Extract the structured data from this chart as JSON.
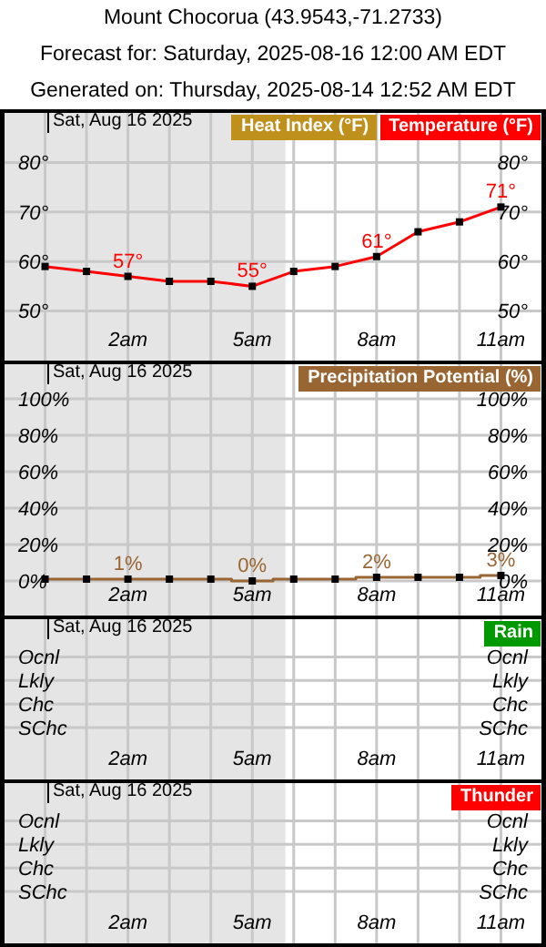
{
  "chart_data": [
    {
      "type": "line",
      "title": "Mount Chocorua (43.9543,-71.2733)",
      "subtitle": "Forecast for: Saturday, 2025-08-16 12:00 AM EDT\nGenerated on: Thursday, 2025-08-14 12:52 AM EDT",
      "annotations": [
        "Sat, Aug 16 2025"
      ],
      "x": [
        0,
        1,
        2,
        3,
        4,
        5,
        6,
        7,
        8,
        9,
        10,
        11
      ],
      "series": [
        {
          "name": "Heat Index (°F)",
          "color": "#c0901c",
          "values": [
            null,
            null,
            null,
            null,
            null,
            null,
            null,
            null,
            null,
            null,
            null,
            null
          ]
        },
        {
          "name": "Temperature (°F)",
          "color": "#ff0000",
          "values": [
            59,
            58,
            57,
            56,
            56,
            55,
            58,
            59,
            61,
            66,
            68,
            71
          ],
          "value_labels": [
            null,
            null,
            "57°",
            null,
            null,
            "55°",
            null,
            null,
            "61°",
            null,
            null,
            "71°"
          ]
        }
      ],
      "xlim": [
        -1,
        12
      ],
      "xticks": [
        {
          "value": 0,
          "label": null
        },
        {
          "value": 1,
          "label": null
        },
        {
          "value": 2,
          "label": "2am"
        },
        {
          "value": 3,
          "label": null
        },
        {
          "value": 4,
          "label": null
        },
        {
          "value": 5,
          "label": "5am"
        },
        {
          "value": 6,
          "label": null
        },
        {
          "value": 7,
          "label": null
        },
        {
          "value": 8,
          "label": "8am"
        },
        {
          "value": 9,
          "label": null
        },
        {
          "value": 10,
          "label": null
        },
        {
          "value": 11,
          "label": "11am"
        }
      ],
      "ylim": [
        40,
        90
      ],
      "yticks": [
        {
          "value": 50,
          "label": "50°"
        },
        {
          "value": 60,
          "label": "60°"
        },
        {
          "value": 70,
          "label": "70°"
        },
        {
          "value": 80,
          "label": "80°"
        }
      ],
      "y2lim": [
        40,
        90
      ],
      "y2ticks": [
        {
          "value": 50,
          "label": "50°"
        },
        {
          "value": 60,
          "label": "60°"
        },
        {
          "value": 70,
          "label": "70°"
        },
        {
          "value": 80,
          "label": "80°"
        }
      ],
      "bands": [
        {
          "axis": "x",
          "from": -1,
          "to": 5.8,
          "color": "#e5e5e5"
        }
      ],
      "grid": true,
      "legend": "top right",
      "marker": "square"
    },
    {
      "type": "step",
      "annotations": [
        "Sat, Aug 16 2025"
      ],
      "x": [
        0,
        1,
        2,
        3,
        4,
        5,
        6,
        7,
        8,
        9,
        10,
        11
      ],
      "series": [
        {
          "name": "Precipitation Potential (%)",
          "color": "#996633",
          "values": [
            1,
            1,
            1,
            1,
            1,
            0,
            1,
            1,
            2,
            2,
            2,
            3
          ],
          "value_labels": [
            null,
            null,
            "1%",
            null,
            null,
            "0%",
            null,
            null,
            "2%",
            null,
            null,
            "3%"
          ]
        }
      ],
      "xlim": [
        -1,
        12
      ],
      "xticks": [
        {
          "value": 0,
          "label": null
        },
        {
          "value": 1,
          "label": null
        },
        {
          "value": 2,
          "label": "2am"
        },
        {
          "value": 3,
          "label": null
        },
        {
          "value": 4,
          "label": null
        },
        {
          "value": 5,
          "label": "5am"
        },
        {
          "value": 6,
          "label": null
        },
        {
          "value": 7,
          "label": null
        },
        {
          "value": 8,
          "label": "8am"
        },
        {
          "value": 9,
          "label": null
        },
        {
          "value": 10,
          "label": null
        },
        {
          "value": 11,
          "label": "11am"
        }
      ],
      "ylim": [
        -19,
        119
      ],
      "yticks": [
        {
          "value": 0,
          "label": "0%"
        },
        {
          "value": 20,
          "label": "20%"
        },
        {
          "value": 40,
          "label": "40%"
        },
        {
          "value": 60,
          "label": "60%"
        },
        {
          "value": 80,
          "label": "80%"
        },
        {
          "value": 100,
          "label": "100%"
        }
      ],
      "y2lim": [
        -19,
        119
      ],
      "y2ticks": [
        {
          "value": 0,
          "label": "0%"
        },
        {
          "value": 20,
          "label": "20%"
        },
        {
          "value": 40,
          "label": "40%"
        },
        {
          "value": 60,
          "label": "60%"
        },
        {
          "value": 80,
          "label": "80%"
        },
        {
          "value": 100,
          "label": "100%"
        }
      ],
      "bands": [
        {
          "axis": "x",
          "from": -1,
          "to": 5.8,
          "color": "#e5e5e5"
        }
      ],
      "grid": true,
      "legend": "top right",
      "marker": "square"
    },
    {
      "type": "heatmap",
      "annotations": [
        "Sat, Aug 16 2025"
      ],
      "categories": [
        null,
        null,
        "2am",
        null,
        null,
        "5am",
        null,
        null,
        "8am",
        null,
        null,
        "11am"
      ],
      "y_categories": [
        "Ocnl",
        "Lkly",
        "Chc",
        "SChc"
      ],
      "y2_categories": [
        "Ocnl",
        "Lkly",
        "Chc",
        "SChc"
      ],
      "cells": [
        [
          null,
          null,
          null,
          null,
          null,
          null,
          null,
          null,
          null,
          null,
          null,
          null
        ],
        [
          null,
          null,
          null,
          null,
          null,
          null,
          null,
          null,
          null,
          null,
          null,
          null
        ],
        [
          null,
          null,
          null,
          null,
          null,
          null,
          null,
          null,
          null,
          null,
          null,
          null
        ],
        [
          null,
          null,
          null,
          null,
          null,
          null,
          null,
          null,
          null,
          null,
          null,
          null
        ]
      ],
      "series": [
        {
          "name": "Rain",
          "color": "#009900",
          "values": [
            null,
            null,
            null,
            null,
            null,
            null,
            null,
            null,
            null,
            null,
            null,
            null
          ]
        }
      ],
      "grid": true,
      "legend": "top right"
    },
    {
      "type": "heatmap",
      "annotations": [
        "Sat, Aug 16 2025"
      ],
      "categories": [
        null,
        null,
        "2am",
        null,
        null,
        "5am",
        null,
        null,
        "8am",
        null,
        null,
        "11am"
      ],
      "y_categories": [
        "Ocnl",
        "Lkly",
        "Chc",
        "SChc"
      ],
      "y2_categories": [
        "Ocnl",
        "Lkly",
        "Chc",
        "SChc"
      ],
      "cells": [
        [
          null,
          null,
          null,
          null,
          null,
          null,
          null,
          null,
          null,
          null,
          null,
          null
        ],
        [
          null,
          null,
          null,
          null,
          null,
          null,
          null,
          null,
          null,
          null,
          null,
          null
        ],
        [
          null,
          null,
          null,
          null,
          null,
          null,
          null,
          null,
          null,
          null,
          null,
          null
        ],
        [
          null,
          null,
          null,
          null,
          null,
          null,
          null,
          null,
          null,
          null,
          null,
          null
        ]
      ],
      "series": [
        {
          "name": "Thunder",
          "color": "#ff0000",
          "values": [
            null,
            null,
            null,
            null,
            null,
            null,
            null,
            null,
            null,
            null,
            null,
            null
          ]
        }
      ],
      "grid": true,
      "legend": "top right"
    }
  ]
}
